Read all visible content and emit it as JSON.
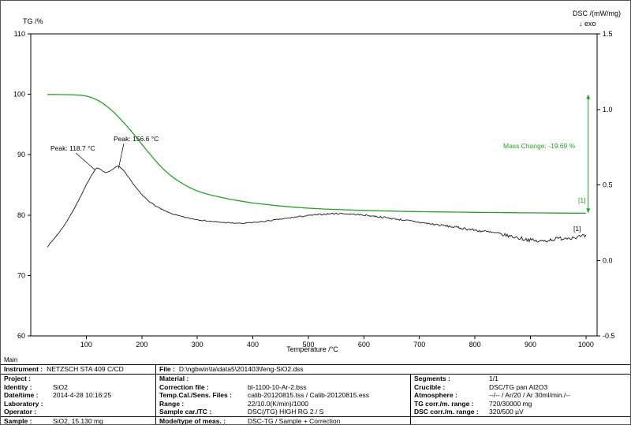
{
  "chart_data": {
    "type": "line",
    "title": "",
    "x_axis": {
      "label": "Temperature /°C",
      "min": 0,
      "max": 1020,
      "ticks": [
        {
          "v": 100,
          "label": "100"
        },
        {
          "v": 200,
          "label": "200"
        },
        {
          "v": 300,
          "label": "300"
        },
        {
          "v": 400,
          "label": "400"
        },
        {
          "v": 500,
          "label": "500"
        },
        {
          "v": 600,
          "label": "600"
        },
        {
          "v": 700,
          "label": "700"
        },
        {
          "v": 800,
          "label": "800"
        },
        {
          "v": 900,
          "label": "900"
        },
        {
          "v": 1000,
          "label": "1000"
        }
      ]
    },
    "y_left": {
      "label": "TG /%",
      "min": 60,
      "max": 110,
      "ticks": [
        {
          "v": 60,
          "label": "60"
        },
        {
          "v": 70,
          "label": "70"
        },
        {
          "v": 80,
          "label": "80"
        },
        {
          "v": 90,
          "label": "90"
        },
        {
          "v": 100,
          "label": "100"
        },
        {
          "v": 110,
          "label": "110"
        }
      ]
    },
    "y_right": {
      "label": "DSC /(mW/mg)",
      "sub": "↓ exo",
      "min": -0.5,
      "max": 1.5,
      "ticks": [
        {
          "v": -0.5,
          "label": "-0.5"
        },
        {
          "v": 0,
          "label": "0.0"
        },
        {
          "v": 0.5,
          "label": "0.5"
        },
        {
          "v": 1,
          "label": "1.0"
        },
        {
          "v": 1.5,
          "label": "1.5"
        }
      ]
    },
    "grid": false,
    "legend": "none",
    "series": [
      {
        "name": "TG",
        "axis": "left",
        "color": "#2aa02a",
        "width": 1.3,
        "points": [
          [
            30,
            99.97
          ],
          [
            50,
            99.96
          ],
          [
            70,
            99.93
          ],
          [
            90,
            99.85
          ],
          [
            100,
            99.7
          ],
          [
            110,
            99.45
          ],
          [
            120,
            99.05
          ],
          [
            130,
            98.5
          ],
          [
            140,
            97.8
          ],
          [
            150,
            97.0
          ],
          [
            160,
            96.05
          ],
          [
            170,
            95.05
          ],
          [
            180,
            94.0
          ],
          [
            190,
            92.9
          ],
          [
            200,
            91.75
          ],
          [
            210,
            90.6
          ],
          [
            220,
            89.5
          ],
          [
            230,
            88.45
          ],
          [
            240,
            87.5
          ],
          [
            250,
            86.7
          ],
          [
            260,
            86.0
          ],
          [
            270,
            85.4
          ],
          [
            280,
            84.85
          ],
          [
            290,
            84.4
          ],
          [
            300,
            84.0
          ],
          [
            315,
            83.55
          ],
          [
            330,
            83.2
          ],
          [
            345,
            82.9
          ],
          [
            360,
            82.6
          ],
          [
            380,
            82.3
          ],
          [
            400,
            82.0
          ],
          [
            425,
            81.75
          ],
          [
            450,
            81.5
          ],
          [
            475,
            81.3
          ],
          [
            500,
            81.15
          ],
          [
            530,
            81.0
          ],
          [
            560,
            80.9
          ],
          [
            590,
            80.8
          ],
          [
            620,
            80.72
          ],
          [
            650,
            80.66
          ],
          [
            680,
            80.6
          ],
          [
            710,
            80.56
          ],
          [
            740,
            80.52
          ],
          [
            770,
            80.49
          ],
          [
            800,
            80.46
          ],
          [
            830,
            80.43
          ],
          [
            860,
            80.41
          ],
          [
            890,
            80.38
          ],
          [
            920,
            80.36
          ],
          [
            950,
            80.34
          ],
          [
            975,
            80.32
          ],
          [
            1000,
            80.31
          ]
        ]
      },
      {
        "name": "DSC",
        "axis": "right",
        "color": "#1a1a1a",
        "width": 0.9,
        "points": [
          [
            30,
            0.09
          ],
          [
            40,
            0.135
          ],
          [
            50,
            0.18
          ],
          [
            60,
            0.23
          ],
          [
            70,
            0.29
          ],
          [
            80,
            0.355
          ],
          [
            90,
            0.425
          ],
          [
            100,
            0.5
          ],
          [
            108,
            0.555
          ],
          [
            114,
            0.59
          ],
          [
            118.7,
            0.615
          ],
          [
            124,
            0.605
          ],
          [
            130,
            0.59
          ],
          [
            137,
            0.582
          ],
          [
            144,
            0.595
          ],
          [
            150,
            0.61
          ],
          [
            156.6,
            0.625
          ],
          [
            162,
            0.615
          ],
          [
            168,
            0.59
          ],
          [
            175,
            0.555
          ],
          [
            182,
            0.52
          ],
          [
            190,
            0.48
          ],
          [
            200,
            0.435
          ],
          [
            212,
            0.395
          ],
          [
            225,
            0.36
          ],
          [
            240,
            0.33
          ],
          [
            255,
            0.308
          ],
          [
            270,
            0.292
          ],
          [
            285,
            0.28
          ],
          [
            300,
            0.27
          ],
          [
            320,
            0.26
          ],
          [
            340,
            0.253
          ],
          [
            360,
            0.248
          ],
          [
            380,
            0.245
          ],
          [
            400,
            0.25
          ],
          [
            420,
            0.258
          ],
          [
            440,
            0.268
          ],
          [
            460,
            0.278
          ],
          [
            480,
            0.288
          ],
          [
            500,
            0.297
          ],
          [
            520,
            0.304
          ],
          [
            540,
            0.309
          ],
          [
            560,
            0.31
          ],
          [
            580,
            0.306
          ],
          [
            600,
            0.3
          ],
          [
            620,
            0.292
          ],
          [
            640,
            0.283
          ],
          [
            660,
            0.273
          ],
          [
            680,
            0.263
          ],
          [
            700,
            0.252
          ],
          [
            720,
            0.242
          ],
          [
            740,
            0.232
          ],
          [
            760,
            0.222
          ],
          [
            780,
            0.212
          ],
          [
            800,
            0.2
          ],
          [
            820,
            0.19
          ],
          [
            840,
            0.178
          ],
          [
            860,
            0.163
          ],
          [
            880,
            0.148
          ],
          [
            900,
            0.135
          ],
          [
            915,
            0.125
          ],
          [
            930,
            0.133
          ],
          [
            945,
            0.142
          ],
          [
            960,
            0.148
          ],
          [
            975,
            0.152
          ],
          [
            1000,
            0.16
          ]
        ],
        "noise_profile": [
          [
            30,
            0.002
          ],
          [
            150,
            0.0025
          ],
          [
            300,
            0.003
          ],
          [
            450,
            0.004
          ],
          [
            600,
            0.005
          ],
          [
            700,
            0.006
          ],
          [
            750,
            0.0075
          ],
          [
            800,
            0.009
          ],
          [
            850,
            0.011
          ],
          [
            900,
            0.012
          ],
          [
            1000,
            0.013
          ]
        ]
      }
    ],
    "annotations": {
      "peak1": {
        "text": "Peak: 118.7 °C",
        "t": 118.7,
        "v": 0.615
      },
      "peak2": {
        "text": "Peak: 156.6 °C",
        "t": 156.6,
        "v": 0.625
      },
      "mass_change": {
        "text": "Mass Change: -19.69 %",
        "x_t": 1004,
        "from": 100,
        "to": 80.31
      },
      "curve_id_tg": "[1]",
      "curve_id_dsc": "[1]"
    }
  },
  "footer": {
    "tab": "Main",
    "instrument_label": "Instrument :",
    "instrument": "NETZSCH STA 409 C/CD",
    "file_label": "File :",
    "file": "D:\\ngbwin\\ta\\data5\\201403\\feng-SiO2.dss",
    "columns": [
      {
        "rows": [
          {
            "label": "Project :",
            "value": ""
          },
          {
            "label": "Identity :",
            "value": "SiO2"
          },
          {
            "label": "Date/time :",
            "value": "2014-4-28 10:16:25"
          },
          {
            "label": "Laboratory :",
            "value": ""
          },
          {
            "label": "Operator :",
            "value": ""
          },
          {
            "label": "Sample :",
            "value": "SiO2, 15.130 mg"
          }
        ]
      },
      {
        "rows": [
          {
            "label": "Material :",
            "value": ""
          },
          {
            "label": "Correction file :",
            "value": "bl-1100-10-Ar-2.bss"
          },
          {
            "label": "Temp.Cal./Sens. Files :",
            "value": "calib-20120815.tss / Calib-20120815.ess"
          },
          {
            "label": "Range :",
            "value": "22/10.0(K/min)/1000"
          },
          {
            "label": "Sample car./TC :",
            "value": "DSC(/TG) HIGH RG 2 / S"
          },
          {
            "label": "Mode/type of meas. :",
            "value": "DSC-TG / Sample + Correction"
          }
        ]
      },
      {
        "rows": [
          {
            "label": "Segments :",
            "value": "1/1"
          },
          {
            "label": "Crucible :",
            "value": "DSC/TG pan Al2O3"
          },
          {
            "label": "Atmosphere :",
            "value": "--/-- / Ar/20 / Ar  30ml/min./--"
          },
          {
            "label": "TG corr./m. range :",
            "value": "720/30000 mg"
          },
          {
            "label": "DSC corr./m. range :",
            "value": "320/500 µV"
          },
          {
            "label": "",
            "value": ""
          }
        ]
      }
    ]
  }
}
